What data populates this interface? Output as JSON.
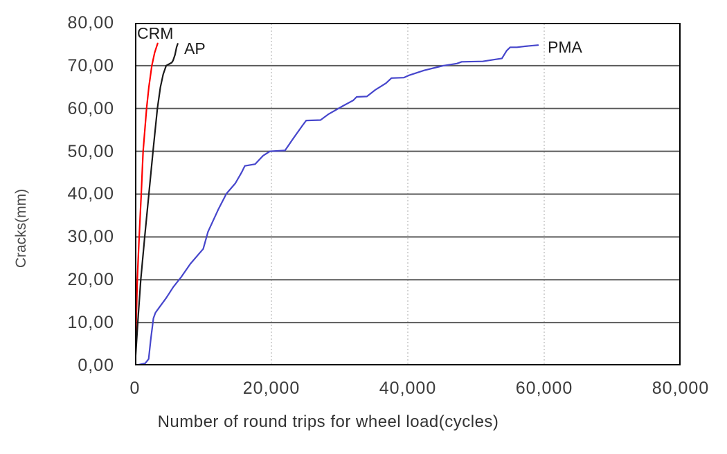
{
  "figure": {
    "background": "#ffffff",
    "border_color": "#000000"
  },
  "chart_data": {
    "type": "line",
    "title": "",
    "xlabel": "Number of round trips for wheel load(cycles)",
    "ylabel": "Cracks(mm)",
    "xlim": [
      0,
      80000
    ],
    "ylim": [
      0,
      80
    ],
    "xticks": {
      "values": [
        0,
        20000,
        40000,
        60000,
        80000
      ],
      "labels": [
        "0",
        "20,000",
        "40,000",
        "60,000",
        "80,000"
      ]
    },
    "yticks": {
      "values": [
        0,
        10,
        20,
        30,
        40,
        50,
        60,
        70,
        80
      ],
      "labels": [
        "0,00",
        "10,00",
        "20,00",
        "30,00",
        "40,00",
        "50,00",
        "60,00",
        "70,00",
        "80,00"
      ]
    },
    "grid": {
      "horizontal_style": "solid",
      "horizontal_color": "#5a5a5a",
      "vertical_style": "dotted",
      "vertical_color": "#a8a8a8"
    },
    "legend_position": "inline-labels",
    "series": [
      {
        "name": "CRM",
        "color": "#ff0000",
        "points": [
          [
            0,
            0
          ],
          [
            170,
            10
          ],
          [
            335,
            20
          ],
          [
            610,
            30
          ],
          [
            915,
            40
          ],
          [
            1190,
            50
          ],
          [
            1695,
            60
          ],
          [
            2030,
            65
          ],
          [
            2470,
            70
          ],
          [
            2875,
            73
          ],
          [
            3320,
            75.2
          ]
        ]
      },
      {
        "name": "AP",
        "color": "#1a1a1a",
        "points": [
          [
            0,
            0
          ],
          [
            200,
            5
          ],
          [
            405,
            10
          ],
          [
            845,
            20
          ],
          [
            1420,
            30
          ],
          [
            2030,
            40
          ],
          [
            2640,
            50
          ],
          [
            3280,
            60
          ],
          [
            3725,
            65
          ],
          [
            4130,
            68
          ],
          [
            4570,
            70
          ],
          [
            5380,
            70.7
          ],
          [
            5580,
            71.2
          ],
          [
            5860,
            72.5
          ],
          [
            6090,
            74.3
          ],
          [
            6265,
            75.1
          ]
        ]
      },
      {
        "name": "PMA",
        "color": "#4646cc",
        "points": [
          [
            0,
            0
          ],
          [
            1500,
            0.5
          ],
          [
            2000,
            1.5
          ],
          [
            2300,
            6
          ],
          [
            2700,
            11
          ],
          [
            3000,
            12.3
          ],
          [
            3400,
            13.2
          ],
          [
            4600,
            15.8
          ],
          [
            5600,
            18.3
          ],
          [
            6800,
            20.7
          ],
          [
            8100,
            23.7
          ],
          [
            9500,
            26.3
          ],
          [
            10000,
            27.2
          ],
          [
            10700,
            31.2
          ],
          [
            12200,
            36.4
          ],
          [
            13400,
            40.1
          ],
          [
            14700,
            42.5
          ],
          [
            15600,
            45
          ],
          [
            16100,
            46.6
          ],
          [
            17600,
            47
          ],
          [
            18800,
            49
          ],
          [
            19800,
            50
          ],
          [
            22000,
            50.2
          ],
          [
            23200,
            53
          ],
          [
            24500,
            55.9
          ],
          [
            25100,
            57.2
          ],
          [
            27200,
            57.3
          ],
          [
            28400,
            58.7
          ],
          [
            30500,
            60.6
          ],
          [
            32000,
            61.9
          ],
          [
            32500,
            62.7
          ],
          [
            34000,
            62.8
          ],
          [
            35200,
            64.3
          ],
          [
            36800,
            65.9
          ],
          [
            37600,
            67.1
          ],
          [
            39400,
            67.2
          ],
          [
            40100,
            67.7
          ],
          [
            42400,
            68.9
          ],
          [
            45200,
            70
          ],
          [
            47200,
            70.5
          ],
          [
            47900,
            70.9
          ],
          [
            51000,
            71
          ],
          [
            52600,
            71.4
          ],
          [
            53800,
            71.7
          ],
          [
            54500,
            73.5
          ],
          [
            55000,
            74.3
          ],
          [
            56000,
            74.3
          ],
          [
            57100,
            74.5
          ],
          [
            59100,
            74.8
          ]
        ]
      }
    ]
  }
}
